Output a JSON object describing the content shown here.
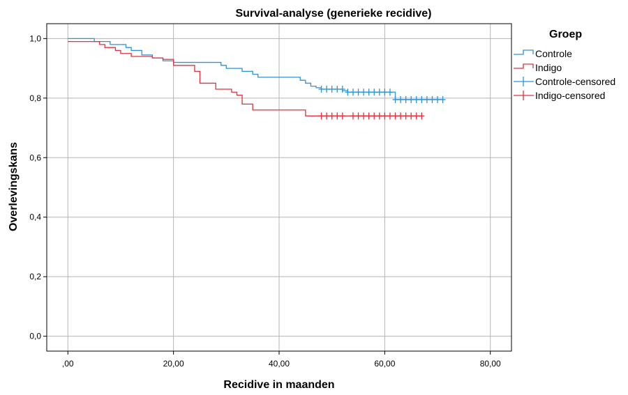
{
  "chart_data": {
    "type": "line",
    "title": "Survival-analyse (generieke recidive)",
    "xlabel": "Recidive in maanden",
    "ylabel": "Overlevingskans",
    "xlim": [
      -4,
      84
    ],
    "ylim": [
      -0.05,
      1.05
    ],
    "x_ticks": [
      0,
      20,
      40,
      60,
      80
    ],
    "x_tick_labels": [
      ",00",
      "20,00",
      "40,00",
      "60,00",
      "80,00"
    ],
    "y_ticks": [
      0,
      0.2,
      0.4,
      0.6,
      0.8,
      1.0
    ],
    "y_tick_labels": [
      "0,0",
      "0,2",
      "0,4",
      "0,6",
      "0,8",
      "1,0"
    ],
    "grid": true,
    "legend_title": "Groep",
    "legend_position": "right",
    "colors": {
      "Controle": "#2e92d6",
      "Indigo": "#e0303e"
    },
    "series": [
      {
        "name": "Controle",
        "color": "#2e92d6",
        "steps": [
          [
            0,
            1.0
          ],
          [
            5,
            0.99
          ],
          [
            8,
            0.98
          ],
          [
            11,
            0.97
          ],
          [
            12,
            0.96
          ],
          [
            14,
            0.945
          ],
          [
            16,
            0.935
          ],
          [
            18,
            0.925
          ],
          [
            20,
            0.92
          ],
          [
            29,
            0.91
          ],
          [
            30,
            0.9
          ],
          [
            33,
            0.89
          ],
          [
            35,
            0.88
          ],
          [
            36,
            0.87
          ],
          [
            44,
            0.86
          ],
          [
            45,
            0.85
          ],
          [
            46,
            0.84
          ],
          [
            47,
            0.835
          ],
          [
            48,
            0.83
          ],
          [
            52,
            0.825
          ],
          [
            53,
            0.82
          ],
          [
            62,
            0.795
          ],
          [
            71,
            0.795
          ]
        ]
      },
      {
        "name": "Indigo",
        "color": "#e0303e",
        "steps": [
          [
            0,
            0.99
          ],
          [
            6,
            0.98
          ],
          [
            7,
            0.97
          ],
          [
            9,
            0.96
          ],
          [
            10,
            0.95
          ],
          [
            12,
            0.94
          ],
          [
            16,
            0.935
          ],
          [
            18,
            0.93
          ],
          [
            20,
            0.91
          ],
          [
            24,
            0.89
          ],
          [
            25,
            0.85
          ],
          [
            28,
            0.83
          ],
          [
            31,
            0.82
          ],
          [
            32,
            0.81
          ],
          [
            33,
            0.78
          ],
          [
            35,
            0.76
          ],
          [
            45,
            0.74
          ],
          [
            67,
            0.74
          ]
        ]
      },
      {
        "name": "Controle-censored",
        "color": "#2e92d6",
        "marker": "plus",
        "points": [
          [
            48,
            0.83
          ],
          [
            49,
            0.83
          ],
          [
            50,
            0.83
          ],
          [
            51,
            0.83
          ],
          [
            52,
            0.83
          ],
          [
            53,
            0.82
          ],
          [
            54,
            0.82
          ],
          [
            55,
            0.82
          ],
          [
            56,
            0.82
          ],
          [
            57,
            0.82
          ],
          [
            58,
            0.82
          ],
          [
            59,
            0.82
          ],
          [
            60,
            0.82
          ],
          [
            61,
            0.82
          ],
          [
            62,
            0.795
          ],
          [
            63,
            0.795
          ],
          [
            64,
            0.795
          ],
          [
            65,
            0.795
          ],
          [
            66,
            0.795
          ],
          [
            67,
            0.795
          ],
          [
            68,
            0.795
          ],
          [
            69,
            0.795
          ],
          [
            70,
            0.795
          ],
          [
            71,
            0.795
          ]
        ]
      },
      {
        "name": "Indigo-censored",
        "color": "#e0303e",
        "marker": "plus",
        "points": [
          [
            48,
            0.74
          ],
          [
            49,
            0.74
          ],
          [
            50,
            0.74
          ],
          [
            51,
            0.74
          ],
          [
            52,
            0.74
          ],
          [
            54,
            0.74
          ],
          [
            55,
            0.74
          ],
          [
            56,
            0.74
          ],
          [
            57,
            0.74
          ],
          [
            58,
            0.74
          ],
          [
            59,
            0.74
          ],
          [
            60,
            0.74
          ],
          [
            61,
            0.74
          ],
          [
            62,
            0.74
          ],
          [
            63,
            0.74
          ],
          [
            64,
            0.74
          ],
          [
            65,
            0.74
          ],
          [
            66,
            0.74
          ],
          [
            67,
            0.74
          ]
        ]
      }
    ]
  }
}
